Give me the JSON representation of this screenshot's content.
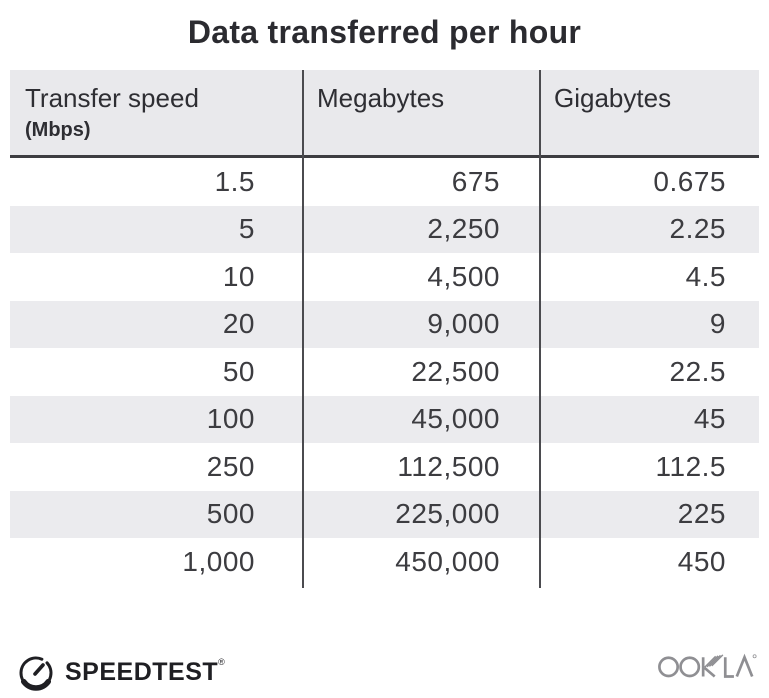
{
  "title": "Data transferred per hour",
  "table": {
    "columns": [
      {
        "label": "Transfer speed",
        "sublabel": "(Mbps)"
      },
      {
        "label": "Megabytes",
        "sublabel": ""
      },
      {
        "label": "Gigabytes",
        "sublabel": ""
      }
    ],
    "rows": [
      [
        "1.5",
        "675",
        "0.675"
      ],
      [
        "5",
        "2,250",
        "2.25"
      ],
      [
        "10",
        "4,500",
        "4.5"
      ],
      [
        "20",
        "9,000",
        "9"
      ],
      [
        "50",
        "22,500",
        "22.5"
      ],
      [
        "100",
        "45,000",
        "45"
      ],
      [
        "250",
        "112,500",
        "112.5"
      ],
      [
        "500",
        "225,000",
        "225"
      ],
      [
        "1,000",
        "450,000",
        "450"
      ]
    ]
  },
  "chart_data": {
    "type": "table",
    "title": "Data transferred per hour",
    "columns": [
      "Transfer speed (Mbps)",
      "Megabytes",
      "Gigabytes"
    ],
    "rows": [
      [
        1.5,
        675,
        0.675
      ],
      [
        5,
        2250,
        2.25
      ],
      [
        10,
        4500,
        4.5
      ],
      [
        20,
        9000,
        9
      ],
      [
        50,
        22500,
        22.5
      ],
      [
        100,
        45000,
        45
      ],
      [
        250,
        112500,
        112.5
      ],
      [
        500,
        225000,
        225
      ],
      [
        1000,
        450000,
        450
      ]
    ],
    "layout_hints": {
      "striped_rows": true,
      "stripe_color": "#ebebee",
      "column_dividers": true,
      "header_background": "#e9e9ec"
    }
  },
  "footer": {
    "speedtest_label": "SPEEDTEST",
    "speedtest_trademark": "®",
    "ookla_label": "OOKLA"
  },
  "colors": {
    "background": "#ffffff",
    "title_text": "#2b2b30",
    "header_bg": "#e9e9ec",
    "row_alt_bg": "#ebebee",
    "divider_line": "#4b4b4f",
    "header_underline": "#3d3d41",
    "body_text": "#3c3c40",
    "speedtest_logo": "#1f1f23",
    "ookla_logo": "#8f8f93"
  }
}
